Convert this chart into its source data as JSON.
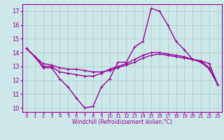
{
  "xlabel": "Windchill (Refroidissement éolien,°C)",
  "bg_color": "#cce8e8",
  "grid_color": "#aacccc",
  "line_color": "#990099",
  "xlim": [
    -0.5,
    23.5
  ],
  "ylim": [
    9.7,
    17.5
  ],
  "yticks": [
    10,
    11,
    12,
    13,
    14,
    15,
    16,
    17
  ],
  "xticks": [
    0,
    1,
    2,
    3,
    4,
    5,
    6,
    7,
    8,
    9,
    10,
    11,
    12,
    13,
    14,
    15,
    16,
    17,
    18,
    19,
    20,
    21,
    22,
    23
  ],
  "series1_x": [
    0,
    1,
    2,
    3,
    4,
    5,
    6,
    7,
    8,
    9,
    10,
    11,
    12,
    13,
    14,
    15,
    16,
    17,
    18,
    19,
    20,
    21,
    22,
    23
  ],
  "series1_y": [
    14.3,
    13.7,
    12.9,
    12.9,
    12.1,
    11.5,
    10.7,
    10.0,
    10.1,
    11.5,
    12.1,
    13.3,
    13.3,
    14.4,
    14.8,
    17.2,
    17.0,
    16.0,
    14.8,
    14.2,
    13.5,
    13.3,
    12.8,
    11.7
  ],
  "series2_x": [
    0,
    1,
    2,
    3,
    4,
    5,
    6,
    7,
    8,
    9,
    10,
    11,
    12,
    13,
    14,
    15,
    16,
    17,
    18,
    19,
    20,
    21,
    22,
    23
  ],
  "series2_y": [
    14.3,
    13.7,
    13.0,
    13.0,
    12.6,
    12.5,
    12.4,
    12.3,
    12.3,
    12.5,
    12.8,
    13.0,
    13.2,
    13.5,
    13.8,
    14.0,
    14.0,
    13.9,
    13.8,
    13.7,
    13.5,
    13.4,
    13.2,
    11.7
  ],
  "series3_x": [
    0,
    1,
    2,
    3,
    4,
    5,
    6,
    7,
    8,
    9,
    10,
    11,
    12,
    13,
    14,
    15,
    16,
    17,
    18,
    19,
    20,
    21,
    22,
    23
  ],
  "series3_y": [
    14.3,
    13.7,
    13.2,
    13.1,
    12.9,
    12.8,
    12.8,
    12.7,
    12.6,
    12.6,
    12.7,
    12.9,
    13.1,
    13.3,
    13.6,
    13.8,
    13.9,
    13.8,
    13.7,
    13.6,
    13.5,
    13.4,
    12.9,
    11.7
  ],
  "marker_size": 3,
  "line_width": 1.0
}
